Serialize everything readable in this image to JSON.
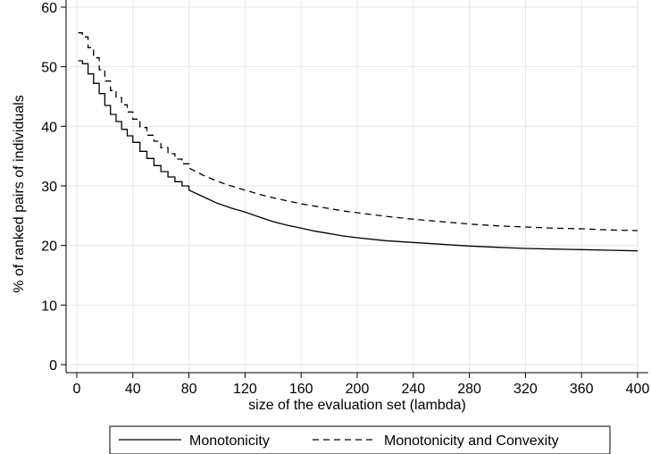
{
  "chart_data": {
    "type": "line",
    "title": "",
    "xlabel": "size of the evaluation set (lambda)",
    "ylabel": "% of ranked pairs of individuals",
    "xlim": [
      0,
      400
    ],
    "ylim": [
      0,
      60
    ],
    "xticks": [
      0,
      40,
      80,
      120,
      160,
      200,
      240,
      280,
      320,
      360,
      400
    ],
    "yticks": [
      0,
      10,
      20,
      30,
      40,
      50,
      60
    ],
    "grid": true,
    "legend_position": "bottom",
    "series": [
      {
        "name": "Monotonicity",
        "style": "solid",
        "color": "#000000",
        "x": [
          1,
          4,
          8,
          12,
          16,
          20,
          24,
          28,
          32,
          36,
          40,
          45,
          50,
          55,
          60,
          65,
          70,
          75,
          80,
          90,
          100,
          110,
          120,
          130,
          140,
          150,
          160,
          170,
          180,
          190,
          200,
          220,
          240,
          260,
          280,
          300,
          320,
          340,
          360,
          380,
          400
        ],
        "y": [
          51.0,
          50.5,
          48.8,
          47.2,
          45.5,
          43.5,
          42.0,
          40.8,
          39.5,
          38.4,
          37.3,
          35.8,
          34.6,
          33.4,
          32.4,
          31.5,
          30.7,
          30.0,
          29.3,
          28.2,
          27.1,
          26.3,
          25.6,
          24.8,
          24.0,
          23.4,
          22.9,
          22.4,
          22.0,
          21.6,
          21.3,
          20.8,
          20.5,
          20.2,
          19.9,
          19.7,
          19.5,
          19.4,
          19.3,
          19.2,
          19.1
        ]
      },
      {
        "name": "Monotonicity and Convexity",
        "style": "dashed",
        "color": "#000000",
        "x": [
          1,
          4,
          8,
          12,
          16,
          20,
          24,
          28,
          32,
          36,
          40,
          45,
          50,
          55,
          60,
          65,
          70,
          75,
          80,
          90,
          100,
          110,
          120,
          130,
          140,
          150,
          160,
          170,
          180,
          190,
          200,
          220,
          240,
          260,
          280,
          300,
          320,
          340,
          360,
          380,
          400
        ],
        "y": [
          55.7,
          55.0,
          53.2,
          51.5,
          49.5,
          47.6,
          46.0,
          44.8,
          43.6,
          42.4,
          41.2,
          39.8,
          38.5,
          37.5,
          36.4,
          35.4,
          34.5,
          33.7,
          33.0,
          31.8,
          30.8,
          30.0,
          29.3,
          28.6,
          28.0,
          27.5,
          27.0,
          26.6,
          26.2,
          25.8,
          25.5,
          24.9,
          24.4,
          24.0,
          23.6,
          23.3,
          23.1,
          22.9,
          22.8,
          22.6,
          22.5
        ]
      }
    ]
  }
}
